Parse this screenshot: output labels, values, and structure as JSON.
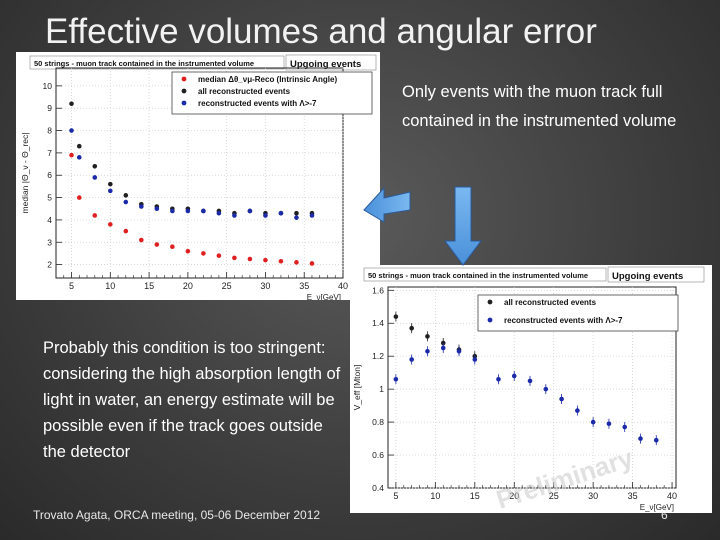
{
  "slide": {
    "title": "Effective volumes and angular error",
    "note_top": "Only events with the muon track full contained in the instrumented volume",
    "note_mid": "Probably this condition is too stringent: considering the high absorption length of light in water, an energy estimate will be possible even if the track goes outside the detector",
    "footer": "Trovato Agata, ORCA meeting, 05-06 December 2012",
    "page_number": "6"
  },
  "chart_data": [
    {
      "type": "scatter",
      "header": "50 strings - muon track contained in the instrumented volume",
      "subtitle": "Upgoing events",
      "ylabel": "median |Θ_ν - Θ_rec|",
      "xlabel": "E_ν[GeV]",
      "xlim": [
        3,
        40
      ],
      "ylim": [
        1.4,
        10.8
      ],
      "xticks": [
        5,
        10,
        15,
        20,
        25,
        30,
        35,
        40
      ],
      "yticks": [
        2,
        3,
        4,
        5,
        6,
        7,
        8,
        9,
        10
      ],
      "series": [
        {
          "name": "median Δθ_νμ-Reco (Intrinsic Angle)",
          "color": "#e02020",
          "x": [
            5,
            6,
            8,
            10,
            12,
            14,
            16,
            18,
            20,
            22,
            24,
            26,
            28,
            30,
            32,
            34,
            36
          ],
          "y": [
            6.9,
            5.0,
            4.2,
            3.8,
            3.5,
            3.1,
            2.9,
            2.8,
            2.6,
            2.5,
            2.4,
            2.3,
            2.25,
            2.2,
            2.15,
            2.1,
            2.05
          ]
        },
        {
          "name": "all reconstructed events",
          "color": "#202020",
          "x": [
            5,
            6,
            8,
            10,
            12,
            14,
            16,
            18,
            20,
            22,
            24,
            26,
            28,
            30,
            32,
            34,
            36
          ],
          "y": [
            9.2,
            7.3,
            6.4,
            5.6,
            5.1,
            4.7,
            4.6,
            4.5,
            4.5,
            4.4,
            4.4,
            4.3,
            4.4,
            4.3,
            4.3,
            4.3,
            4.3
          ]
        },
        {
          "name": "reconstructed events with Λ>-7",
          "color": "#1a2aa8",
          "x": [
            5,
            6,
            8,
            10,
            12,
            14,
            16,
            18,
            20,
            22,
            24,
            26,
            28,
            30,
            32,
            34,
            36
          ],
          "y": [
            8.0,
            6.8,
            5.9,
            5.3,
            4.8,
            4.6,
            4.5,
            4.4,
            4.4,
            4.4,
            4.3,
            4.2,
            4.4,
            4.2,
            4.3,
            4.1,
            4.2
          ]
        }
      ],
      "legend": "top-right"
    },
    {
      "type": "scatter",
      "header": "50 strings - muon track contained in the instrumented volume",
      "subtitle": "Upgoing events",
      "ylabel": "V_eff [Mton]",
      "xlabel": "E_ν[GeV]",
      "xlim": [
        4,
        40.5
      ],
      "ylim": [
        0.4,
        1.62
      ],
      "xticks": [
        5,
        10,
        15,
        20,
        25,
        30,
        35,
        40
      ],
      "yticks": [
        0.4,
        0.6,
        0.8,
        1,
        1.2,
        1.4,
        1.6
      ],
      "watermark": "Preliminary",
      "series": [
        {
          "name": "all reconstructed events",
          "color": "#202020",
          "x": [
            5,
            7,
            9,
            11,
            13,
            15
          ],
          "y": [
            1.44,
            1.37,
            1.32,
            1.28,
            1.24,
            1.2
          ]
        },
        {
          "name": "reconstructed events with Λ>-7",
          "color": "#1a2aa8",
          "x": [
            5,
            7,
            9,
            11,
            13,
            15,
            18,
            20,
            22,
            24,
            26,
            28,
            30,
            32,
            34,
            36,
            38
          ],
          "y": [
            1.06,
            1.18,
            1.23,
            1.25,
            1.23,
            1.18,
            1.06,
            1.08,
            1.05,
            1.0,
            0.94,
            0.87,
            0.8,
            0.79,
            0.77,
            0.7,
            0.69
          ]
        }
      ],
      "legend": "top-right"
    }
  ]
}
